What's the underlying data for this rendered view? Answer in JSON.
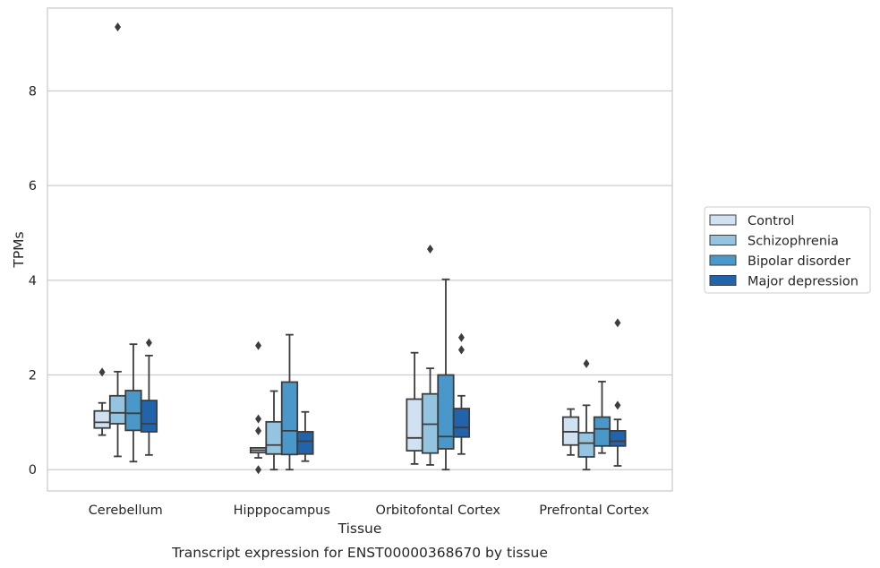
{
  "chart_data": {
    "type": "box",
    "xlabel": "Tissue",
    "ylabel": "TPMs",
    "caption": "Transcript expression for ENST00000368670 by tissue",
    "ylim": [
      -0.45,
      9.75
    ],
    "yticks": [
      0,
      2,
      4,
      6,
      8
    ],
    "grid": "horizontal",
    "legend_position": "right",
    "categories": [
      "Cerebellum",
      "Hipppocampus",
      "Orbitofontal Cortex",
      "Prefrontal Cortex"
    ],
    "series": [
      {
        "name": "Control",
        "color": "#d0e1f2",
        "boxes": [
          {
            "whislo": 0.73,
            "q1": 0.88,
            "med": 1.0,
            "q3": 1.24,
            "whishi": 1.41,
            "fliers": [
              2.06
            ]
          },
          {
            "whislo": 0.25,
            "q1": 0.36,
            "med": 0.41,
            "q3": 0.46,
            "whishi": 0.46,
            "fliers": [
              2.62,
              1.07,
              0.82,
              0.0
            ]
          },
          {
            "whislo": 0.12,
            "q1": 0.4,
            "med": 0.67,
            "q3": 1.49,
            "whishi": 2.47,
            "fliers": []
          },
          {
            "whislo": 0.31,
            "q1": 0.52,
            "med": 0.8,
            "q3": 1.11,
            "whishi": 1.28,
            "fliers": []
          }
        ]
      },
      {
        "name": "Schizophrenia",
        "color": "#94c4df",
        "boxes": [
          {
            "whislo": 0.28,
            "q1": 0.97,
            "med": 1.2,
            "q3": 1.56,
            "whishi": 2.07,
            "fliers": [
              9.35
            ]
          },
          {
            "whislo": 0.0,
            "q1": 0.33,
            "med": 0.52,
            "q3": 1.01,
            "whishi": 1.66,
            "fliers": []
          },
          {
            "whislo": 0.1,
            "q1": 0.35,
            "med": 0.96,
            "q3": 1.6,
            "whishi": 2.14,
            "fliers": [
              4.66
            ]
          },
          {
            "whislo": 0.0,
            "q1": 0.27,
            "med": 0.56,
            "q3": 0.78,
            "whishi": 1.36,
            "fliers": [
              2.24
            ]
          }
        ]
      },
      {
        "name": "Bipolar disorder",
        "color": "#4a98c9",
        "boxes": [
          {
            "whislo": 0.17,
            "q1": 0.83,
            "med": 1.19,
            "q3": 1.67,
            "whishi": 2.65,
            "fliers": []
          },
          {
            "whislo": 0.0,
            "q1": 0.32,
            "med": 0.82,
            "q3": 1.85,
            "whishi": 2.85,
            "fliers": []
          },
          {
            "whislo": 0.0,
            "q1": 0.44,
            "med": 0.7,
            "q3": 2.0,
            "whishi": 4.02,
            "fliers": []
          },
          {
            "whislo": 0.35,
            "q1": 0.5,
            "med": 0.86,
            "q3": 1.11,
            "whishi": 1.86,
            "fliers": []
          }
        ]
      },
      {
        "name": "Major depression",
        "color": "#2164ab",
        "boxes": [
          {
            "whislo": 0.31,
            "q1": 0.8,
            "med": 0.97,
            "q3": 1.46,
            "whishi": 2.41,
            "fliers": [
              2.68
            ]
          },
          {
            "whislo": 0.18,
            "q1": 0.33,
            "med": 0.6,
            "q3": 0.8,
            "whishi": 1.22,
            "fliers": []
          },
          {
            "whislo": 0.33,
            "q1": 0.69,
            "med": 0.89,
            "q3": 1.29,
            "whishi": 1.56,
            "fliers": [
              2.79,
              2.53
            ]
          },
          {
            "whislo": 0.08,
            "q1": 0.5,
            "med": 0.6,
            "q3": 0.82,
            "whishi": 1.06,
            "fliers": [
              3.1,
              1.36
            ]
          }
        ]
      }
    ]
  }
}
